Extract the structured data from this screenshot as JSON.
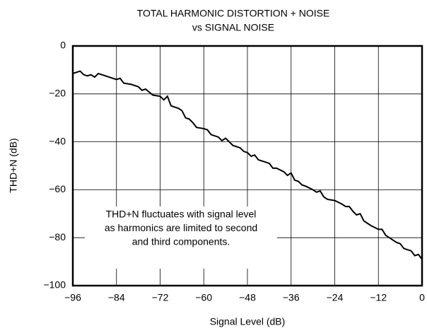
{
  "chart_data": {
    "type": "line",
    "title": "TOTAL HARMONIC DISTORTION + NOISE",
    "subtitle": "vs SIGNAL NOISE",
    "x_label": "Signal Level (dB)",
    "y_label": "THD+N (dB)",
    "annotation": [
      "THD+N fluctuates with signal level",
      "as harmonics are limited to second",
      "and third components."
    ],
    "x": [
      -96,
      -95,
      -94,
      -93,
      -92,
      -91,
      -90,
      -89,
      -88,
      -86,
      -84,
      -83,
      -82,
      -80,
      -78,
      -77,
      -76,
      -74,
      -72,
      -71,
      -70,
      -69,
      -67,
      -66,
      -65,
      -64,
      -63,
      -62,
      -60,
      -59,
      -58,
      -56,
      -55,
      -54,
      -53,
      -52,
      -50,
      -49,
      -48,
      -47,
      -46,
      -45,
      -44,
      -42,
      -41,
      -40,
      -38,
      -37,
      -36,
      -35,
      -34,
      -33,
      -32,
      -30,
      -29,
      -28,
      -27,
      -26,
      -24,
      -22,
      -21,
      -20,
      -19,
      -18,
      -17,
      -16,
      -15,
      -14,
      -12,
      -11,
      -10,
      -9,
      -8,
      -7,
      -6,
      -5,
      -4,
      -3,
      -2,
      -1,
      0
    ],
    "series": [
      {
        "name": "THD+N",
        "color": "#000000",
        "values": [
          -11.5,
          -11,
          -10.5,
          -12,
          -12.5,
          -12,
          -13,
          -11.5,
          -12,
          -13,
          -14,
          -13.5,
          -15.5,
          -16,
          -17,
          -18.5,
          -18,
          -20.5,
          -21,
          -22.5,
          -21,
          -25,
          -26,
          -27,
          -30,
          -30.5,
          -32,
          -34,
          -34.5,
          -35,
          -37,
          -38,
          -39.5,
          -38.5,
          -40,
          -41.5,
          -42.5,
          -44,
          -44.5,
          -46,
          -45.5,
          -47.5,
          -48,
          -49,
          -51,
          -51,
          -52.5,
          -54,
          -53,
          -56,
          -56.5,
          -58,
          -58.5,
          -60,
          -61,
          -60.5,
          -63,
          -64,
          -64.5,
          -66,
          -67,
          -67,
          -69,
          -70.5,
          -70,
          -73,
          -74,
          -75,
          -76.5,
          -76.5,
          -79,
          -80,
          -81,
          -82,
          -82.5,
          -84.5,
          -85,
          -85.5,
          -87.5,
          -87,
          -89
        ]
      }
    ],
    "xlim": [
      -96,
      0
    ],
    "xticks": [
      {
        "value": -96,
        "label": "−96"
      },
      {
        "value": -84,
        "label": "−84"
      },
      {
        "value": -72,
        "label": "−72"
      },
      {
        "value": -60,
        "label": "−60"
      },
      {
        "value": -48,
        "label": "−48"
      },
      {
        "value": -36,
        "label": "−36"
      },
      {
        "value": -24,
        "label": "−24"
      },
      {
        "value": -12,
        "label": "−12"
      },
      0
    ],
    "ylim": [
      -100,
      0
    ],
    "yticks": [
      {
        "value": -100,
        "label": "−100"
      },
      {
        "value": -80,
        "label": "−80"
      },
      {
        "value": -60,
        "label": "−60"
      },
      {
        "value": -40,
        "label": "−40"
      },
      {
        "value": -20,
        "label": "−20"
      },
      0
    ],
    "grid": true
  }
}
